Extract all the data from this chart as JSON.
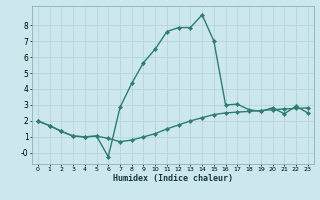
{
  "xlabel": "Humidex (Indice chaleur)",
  "background_color": "#cce8ee",
  "grid_color": "#b8d4da",
  "line_color": "#2e7d6e",
  "spine_color": "#8ab0b8",
  "xlim": [
    -0.5,
    23.5
  ],
  "ylim": [
    -0.7,
    9.2
  ],
  "xticks": [
    0,
    1,
    2,
    3,
    4,
    5,
    6,
    7,
    8,
    9,
    10,
    11,
    12,
    13,
    14,
    15,
    16,
    17,
    18,
    19,
    20,
    21,
    22,
    23
  ],
  "yticks": [
    0,
    1,
    2,
    3,
    4,
    5,
    6,
    7,
    8
  ],
  "ytick_labels": [
    "-0",
    "1",
    "2",
    "3",
    "4",
    "5",
    "6",
    "7",
    "8"
  ],
  "curve1_x": [
    0,
    1,
    2,
    3,
    4,
    5,
    6,
    7,
    8,
    9,
    10,
    11,
    12,
    13,
    14,
    15,
    16,
    17,
    18,
    19,
    20,
    21,
    22,
    23
  ],
  "curve1_y": [
    2.0,
    1.7,
    1.35,
    1.05,
    1.0,
    1.05,
    0.9,
    0.7,
    0.8,
    1.0,
    1.2,
    1.5,
    1.75,
    2.0,
    2.2,
    2.4,
    2.5,
    2.55,
    2.6,
    2.65,
    2.7,
    2.75,
    2.78,
    2.82
  ],
  "curve2_x": [
    0,
    1,
    2,
    3,
    4,
    5,
    6,
    7,
    8,
    9,
    10,
    11,
    12,
    13,
    14,
    15,
    16,
    17,
    18,
    19,
    20,
    21,
    22,
    23
  ],
  "curve2_y": [
    2.0,
    1.7,
    1.35,
    1.05,
    1.0,
    1.05,
    -0.25,
    2.85,
    4.35,
    5.65,
    6.5,
    7.6,
    7.85,
    7.85,
    8.65,
    7.0,
    3.0,
    3.05,
    2.7,
    2.6,
    2.82,
    2.45,
    2.92,
    2.5
  ],
  "marker": "D",
  "marker_size": 2.2,
  "line_width": 1.0
}
